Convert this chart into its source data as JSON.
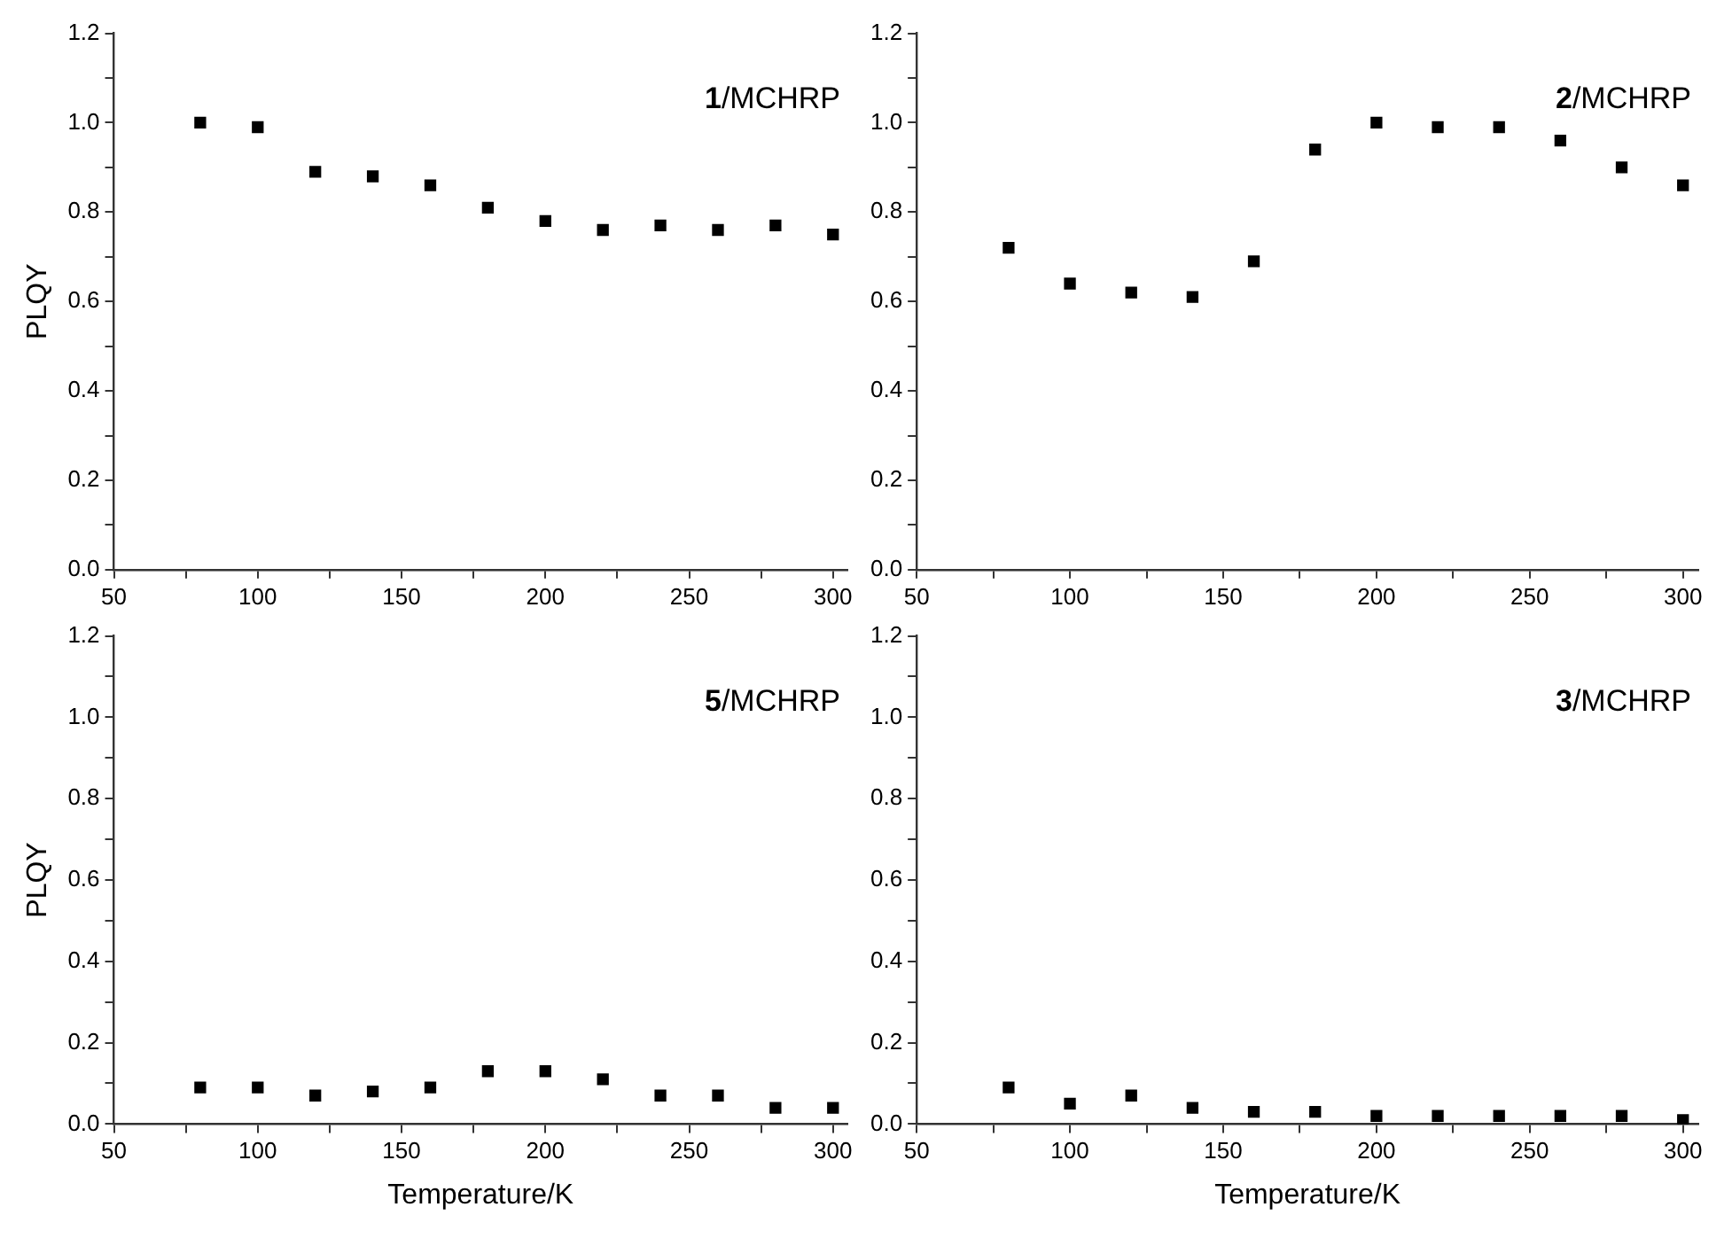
{
  "chart_data": [
    {
      "type": "scatter",
      "ylabel": "PLQY",
      "annotations": [
        "1/MCHRP"
      ],
      "marker": "square",
      "grid": false,
      "color": "#000000",
      "x": [
        80,
        100,
        120,
        140,
        160,
        180,
        200,
        220,
        240,
        260,
        280,
        300
      ],
      "values": [
        1.0,
        0.99,
        0.89,
        0.88,
        0.86,
        0.81,
        0.78,
        0.76,
        0.77,
        0.76,
        0.77,
        0.75
      ],
      "xlim": [
        50,
        305
      ],
      "xticks": [
        50,
        {
          "value": 75,
          "label": null
        },
        100,
        {
          "value": 125,
          "label": null
        },
        150,
        {
          "value": 175,
          "label": null
        },
        200,
        {
          "value": 225,
          "label": null
        },
        250,
        {
          "value": 275,
          "label": null
        },
        300
      ],
      "ylim": [
        0,
        1.2
      ],
      "yticks": [
        {
          "value": 0,
          "label": "0.0"
        },
        {
          "value": 0.1,
          "label": null
        },
        0.2,
        {
          "value": 0.3,
          "label": null
        },
        0.4,
        {
          "value": 0.5,
          "label": null
        },
        0.6,
        {
          "value": 0.7,
          "label": null
        },
        0.8,
        {
          "value": 0.9,
          "label": null
        },
        {
          "value": 1,
          "label": "1.0"
        },
        {
          "value": 1.1,
          "label": null
        },
        1.2
      ]
    },
    {
      "type": "scatter",
      "annotations": [
        "2/MCHRP"
      ],
      "marker": "square",
      "grid": false,
      "color": "#000000",
      "x": [
        80,
        100,
        120,
        140,
        160,
        180,
        200,
        220,
        240,
        260,
        280,
        300
      ],
      "values": [
        0.72,
        0.64,
        0.62,
        0.61,
        0.69,
        0.94,
        1.0,
        0.99,
        0.99,
        0.96,
        0.9,
        0.86
      ],
      "xlim": [
        50,
        305
      ],
      "xticks": [
        50,
        {
          "value": 75,
          "label": null
        },
        100,
        {
          "value": 125,
          "label": null
        },
        150,
        {
          "value": 175,
          "label": null
        },
        200,
        {
          "value": 225,
          "label": null
        },
        250,
        {
          "value": 275,
          "label": null
        },
        300
      ],
      "ylim": [
        0,
        1.2
      ],
      "yticks": [
        {
          "value": 0,
          "label": "0.0"
        },
        {
          "value": 0.1,
          "label": null
        },
        0.2,
        {
          "value": 0.3,
          "label": null
        },
        0.4,
        {
          "value": 0.5,
          "label": null
        },
        0.6,
        {
          "value": 0.7,
          "label": null
        },
        0.8,
        {
          "value": 0.9,
          "label": null
        },
        {
          "value": 1,
          "label": "1.0"
        },
        {
          "value": 1.1,
          "label": null
        },
        1.2
      ]
    },
    {
      "type": "scatter",
      "ylabel": "PLQY",
      "xlabel": "Temperature/K",
      "annotations": [
        "5/MCHRP"
      ],
      "marker": "square",
      "grid": false,
      "color": "#000000",
      "x": [
        80,
        100,
        120,
        140,
        160,
        180,
        200,
        220,
        240,
        260,
        280,
        300
      ],
      "values": [
        0.09,
        0.09,
        0.07,
        0.08,
        0.09,
        0.13,
        0.13,
        0.11,
        0.07,
        0.07,
        0.04,
        0.04
      ],
      "xlim": [
        50,
        305
      ],
      "xticks": [
        50,
        {
          "value": 75,
          "label": null
        },
        100,
        {
          "value": 125,
          "label": null
        },
        150,
        {
          "value": 175,
          "label": null
        },
        200,
        {
          "value": 225,
          "label": null
        },
        250,
        {
          "value": 275,
          "label": null
        },
        300
      ],
      "ylim": [
        0,
        1.2
      ],
      "yticks": [
        {
          "value": 0,
          "label": "0.0"
        },
        {
          "value": 0.1,
          "label": null
        },
        0.2,
        {
          "value": 0.3,
          "label": null
        },
        0.4,
        {
          "value": 0.5,
          "label": null
        },
        0.6,
        {
          "value": 0.7,
          "label": null
        },
        0.8,
        {
          "value": 0.9,
          "label": null
        },
        {
          "value": 1,
          "label": "1.0"
        },
        {
          "value": 1.1,
          "label": null
        },
        1.2
      ]
    },
    {
      "type": "scatter",
      "xlabel": "Temperature/K",
      "annotations": [
        "3/MCHRP"
      ],
      "marker": "square",
      "grid": false,
      "color": "#000000",
      "x": [
        80,
        100,
        120,
        140,
        160,
        180,
        200,
        220,
        240,
        260,
        280,
        300
      ],
      "values": [
        0.09,
        0.05,
        0.07,
        0.04,
        0.03,
        0.03,
        0.02,
        0.02,
        0.02,
        0.02,
        0.02,
        0.01
      ],
      "xlim": [
        50,
        305
      ],
      "xticks": [
        50,
        {
          "value": 75,
          "label": null
        },
        100,
        {
          "value": 125,
          "label": null
        },
        150,
        {
          "value": 175,
          "label": null
        },
        200,
        {
          "value": 225,
          "label": null
        },
        250,
        {
          "value": 275,
          "label": null
        },
        300
      ],
      "ylim": [
        0,
        1.2
      ],
      "yticks": [
        {
          "value": 0,
          "label": "0.0"
        },
        {
          "value": 0.1,
          "label": null
        },
        0.2,
        {
          "value": 0.3,
          "label": null
        },
        0.4,
        {
          "value": 0.5,
          "label": null
        },
        0.6,
        {
          "value": 0.7,
          "label": null
        },
        0.8,
        {
          "value": 0.9,
          "label": null
        },
        {
          "value": 1,
          "label": "1.0"
        },
        {
          "value": 1.1,
          "label": null
        },
        1.2
      ]
    }
  ]
}
